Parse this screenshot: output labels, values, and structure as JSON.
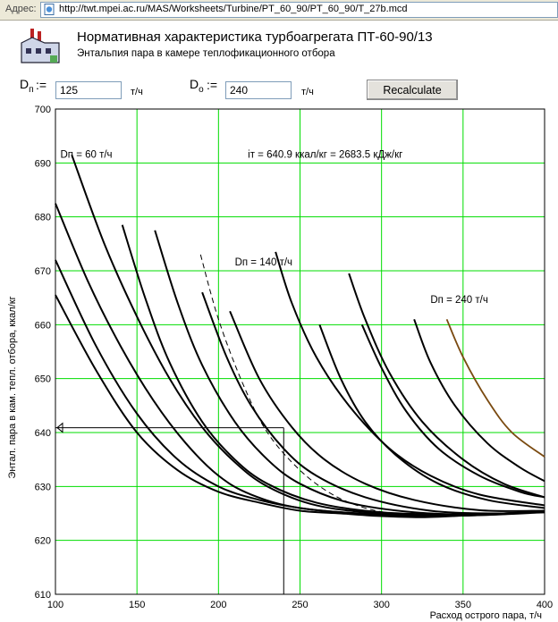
{
  "browser": {
    "address_label": "Адрес:",
    "url": "http://twt.mpei.ac.ru/MAS/Worksheets/Turbine/PT_60_90/PT_60_90/T_27b.mcd"
  },
  "header": {
    "title": "Нормативная характеристика турбоагрегата ПТ-60-90/13",
    "subtitle": "Энтальпия пара в камере теплофикационного отбора"
  },
  "inputs": {
    "dp": {
      "symbol": "D",
      "sub": "п",
      "assign": ":=",
      "value": "125",
      "unit": "т/ч"
    },
    "do": {
      "symbol": "D",
      "sub": "o",
      "assign": ":=",
      "value": "240",
      "unit": "т/ч"
    },
    "recalc_label": "Recalculate"
  },
  "chart_data": {
    "type": "line",
    "xlabel": "Расход острого пара, т/ч",
    "ylabel": "Энтал. пара в кам. тепл. отбора, ккал/кг",
    "xlim": [
      100,
      400
    ],
    "ylim": [
      610,
      700
    ],
    "xticks": [
      100,
      150,
      200,
      250,
      300,
      350,
      400
    ],
    "yticks": [
      610,
      620,
      630,
      640,
      650,
      660,
      670,
      680,
      690,
      700
    ],
    "grid": true,
    "colors": {
      "grid": "#00dd00",
      "curve": "#000000",
      "highlight": "#7a4a10"
    },
    "annotations": [
      {
        "text": "Dп = 60 т/ч",
        "x": 103,
        "y": 691
      },
      {
        "text": "Dп = 140 т/ч",
        "x": 210,
        "y": 671
      },
      {
        "text": "Dп = 240 т/ч",
        "x": 330,
        "y": 664
      },
      {
        "text": "iт = 640.9 ккал/кг    = 2683.5 кДж/кг",
        "x": 218,
        "y": 691
      }
    ],
    "marker": {
      "x": 240,
      "y": 640.9
    },
    "series": [
      {
        "values": [
          [
            100,
            665.5
          ],
          [
            125,
            651.5
          ],
          [
            150,
            640
          ],
          [
            175,
            633
          ],
          [
            200,
            629
          ],
          [
            225,
            627
          ],
          [
            250,
            625.5
          ],
          [
            275,
            625
          ],
          [
            300,
            624.5
          ],
          [
            325,
            624.3
          ],
          [
            350,
            624.6
          ],
          [
            375,
            625
          ],
          [
            400,
            625.2
          ]
        ]
      },
      {
        "values": [
          [
            100,
            672
          ],
          [
            125,
            656
          ],
          [
            150,
            643.5
          ],
          [
            175,
            635
          ],
          [
            200,
            630
          ],
          [
            225,
            627.5
          ],
          [
            250,
            626
          ],
          [
            275,
            625.2
          ],
          [
            300,
            624.8
          ],
          [
            325,
            624.5
          ],
          [
            350,
            624.6
          ],
          [
            375,
            625
          ],
          [
            400,
            625.4
          ]
        ]
      },
      {
        "values": [
          [
            100,
            682.5
          ],
          [
            120,
            668
          ],
          [
            140,
            656
          ],
          [
            160,
            646
          ],
          [
            180,
            638
          ],
          [
            200,
            632
          ],
          [
            220,
            628.5
          ],
          [
            250,
            626
          ],
          [
            300,
            624.8
          ],
          [
            350,
            624.6
          ],
          [
            400,
            625.2
          ]
        ]
      },
      {
        "values": [
          [
            110,
            691.5
          ],
          [
            130,
            675
          ],
          [
            150,
            661.5
          ],
          [
            170,
            650
          ],
          [
            190,
            641
          ],
          [
            210,
            634.5
          ],
          [
            230,
            630
          ],
          [
            260,
            626.5
          ],
          [
            300,
            625
          ],
          [
            350,
            624.6
          ],
          [
            400,
            625.3
          ]
        ]
      },
      {
        "values": [
          [
            141,
            678.5
          ],
          [
            155,
            665
          ],
          [
            170,
            653
          ],
          [
            190,
            642
          ],
          [
            210,
            635
          ],
          [
            230,
            630.5
          ],
          [
            260,
            627
          ],
          [
            300,
            625.2
          ],
          [
            350,
            624.8
          ],
          [
            400,
            625.3
          ]
        ]
      },
      {
        "values": [
          [
            161,
            677.5
          ],
          [
            175,
            664
          ],
          [
            190,
            652.5
          ],
          [
            210,
            642
          ],
          [
            230,
            635
          ],
          [
            250,
            630.5
          ],
          [
            280,
            627
          ],
          [
            320,
            625.2
          ],
          [
            360,
            624.8
          ],
          [
            400,
            625.3
          ]
        ]
      },
      {
        "values": [
          [
            190,
            666
          ],
          [
            205,
            654
          ],
          [
            220,
            645
          ],
          [
            240,
            637
          ],
          [
            260,
            632
          ],
          [
            290,
            628
          ],
          [
            330,
            625.5
          ],
          [
            370,
            625
          ],
          [
            400,
            625.3
          ]
        ]
      },
      {
        "values": [
          [
            207,
            662.5
          ],
          [
            225,
            650
          ],
          [
            245,
            641
          ],
          [
            265,
            635
          ],
          [
            290,
            630.5
          ],
          [
            320,
            627.5
          ],
          [
            360,
            625.6
          ],
          [
            400,
            625.5
          ]
        ]
      },
      {
        "values": [
          [
            262,
            660
          ],
          [
            275,
            650
          ],
          [
            290,
            642
          ],
          [
            310,
            635.5
          ],
          [
            335,
            630.5
          ],
          [
            365,
            627.5
          ],
          [
            400,
            626
          ]
        ]
      },
      {
        "values": [
          [
            288,
            660
          ],
          [
            300,
            652
          ],
          [
            315,
            644
          ],
          [
            335,
            637
          ],
          [
            360,
            632
          ],
          [
            385,
            629
          ],
          [
            400,
            628
          ]
        ]
      },
      {
        "values": [
          [
            320,
            661
          ],
          [
            330,
            653
          ],
          [
            345,
            645
          ],
          [
            365,
            638
          ],
          [
            385,
            633.5
          ],
          [
            400,
            631
          ]
        ]
      },
      {
        "values": [
          [
            280,
            669.5
          ],
          [
            290,
            661
          ],
          [
            305,
            651
          ],
          [
            325,
            642
          ],
          [
            350,
            635
          ],
          [
            375,
            630.5
          ],
          [
            400,
            628
          ]
        ]
      },
      {
        "values": [
          [
            235,
            673.5
          ],
          [
            245,
            664
          ],
          [
            260,
            654
          ],
          [
            280,
            645
          ],
          [
            305,
            637
          ],
          [
            330,
            632
          ],
          [
            360,
            628.5
          ],
          [
            400,
            626.5
          ]
        ]
      },
      {
        "values": [
          [
            340,
            661
          ],
          [
            350,
            654
          ],
          [
            365,
            646
          ],
          [
            380,
            640
          ],
          [
            400,
            635.5
          ]
        ],
        "highlight": true
      }
    ],
    "dashed": [
      [
        189,
        673
      ],
      [
        200,
        661
      ],
      [
        215,
        649
      ],
      [
        230,
        640
      ],
      [
        250,
        633
      ],
      [
        270,
        628.5
      ],
      [
        290,
        626
      ],
      [
        310,
        624.8
      ]
    ]
  }
}
